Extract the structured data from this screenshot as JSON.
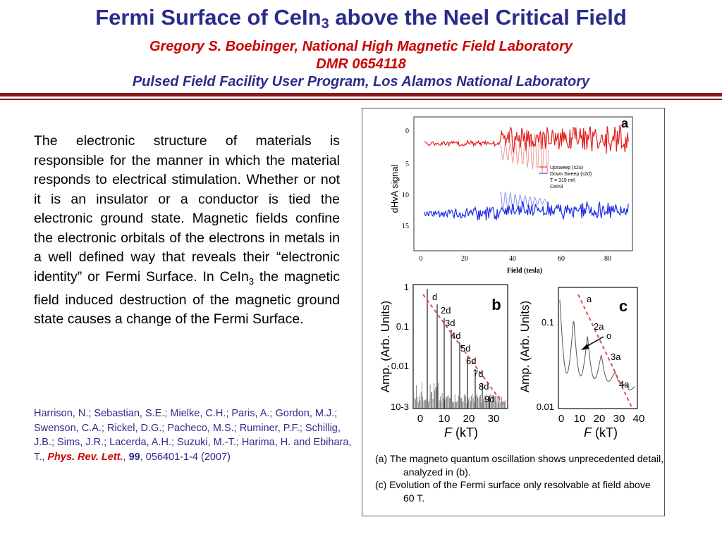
{
  "header": {
    "title_part1": "Fermi Surface of CeIn",
    "title_sub": "3",
    "title_part2": " above the Neel Critical Field",
    "author": "Gregory S. Boebinger, National High Magnetic Field Laboratory",
    "award": "DMR 0654118",
    "program": "Pulsed Field Facility User Program, Los Alamos National Laboratory"
  },
  "body": {
    "text_part1": "The electronic structure of materials is responsible for the manner in which the material responds to electrical stimulation. Whether or not it is an insulator or a conductor is tied the electronic ground state. Magnetic fields confine the electronic orbitals of the electrons in metals in a well defined way that reveals their “electronic identity” or Fermi Surface. In CeIn",
    "text_sub": "3",
    "text_part2": " the magnetic field induced destruction of the magnetic ground state causes a change of the Fermi Surface."
  },
  "reference": {
    "authors": "Harrison, N.; Sebastian, S.E.; Mielke, C.H.; Paris, A.; Gordon, M.J.; Swenson, C.A.; Rickel, D.G.; Pacheco, M.S.; Ruminer, P.F.; Schillig, J.B.; Sims, J.R.; Lacerda, A.H.; Suzuki, M.-T.; Harima, H. and Ebihara, T., ",
    "journal": "Phys. Rev. Lett.",
    "sep1": ", ",
    "volume": "99",
    "pages": ", 056401-1-4 (2007)"
  },
  "figure": {
    "caption_a": "(a) The magneto quantum oscillation shows unprecedented detail, analyzed in (b).",
    "caption_c": "(c) Evolution of the Fermi surface only resolvable at field above 60 T.",
    "panel_a": {
      "label": "a",
      "ylabel": "dHvA signal",
      "xlabel": "Field (tesla)",
      "yticks": [
        "0",
        "5",
        "10",
        "15"
      ],
      "xticks": [
        "0",
        "20",
        "40",
        "60",
        "80"
      ],
      "legend": [
        "Upsweep (s2u)",
        "Down Sweep (s2d)",
        "T = 319 mK",
        "CeIn3"
      ],
      "colors": {
        "up": "#e41e1e",
        "up_light": "#f29a9a",
        "down": "#1e2ee4",
        "down_light": "#8c96f0"
      }
    },
    "panel_b": {
      "label": "b",
      "ylabel": "Amp. (Arb. Units)",
      "xlabel_italic": "F",
      "xlabel_rest": " (kT)",
      "yticks": [
        "1",
        "0.1",
        "0.01",
        "10-3"
      ],
      "xticks": [
        "0",
        "10",
        "20",
        "30"
      ],
      "peaks": [
        "d",
        "2d",
        "3d",
        "4d",
        "5d",
        "6d",
        "7d",
        "8d",
        "9d"
      ]
    },
    "panel_c": {
      "label": "c",
      "ylabel": "Amp. (Arb. Units)",
      "xlabel_italic": "F",
      "xlabel_rest": " (kT)",
      "yticks": [
        "0.1",
        "0.01"
      ],
      "xticks": [
        "0",
        "10",
        "20",
        "30",
        "40"
      ],
      "peaks": [
        "a",
        "2a",
        "o",
        "3a",
        "4a"
      ]
    }
  }
}
